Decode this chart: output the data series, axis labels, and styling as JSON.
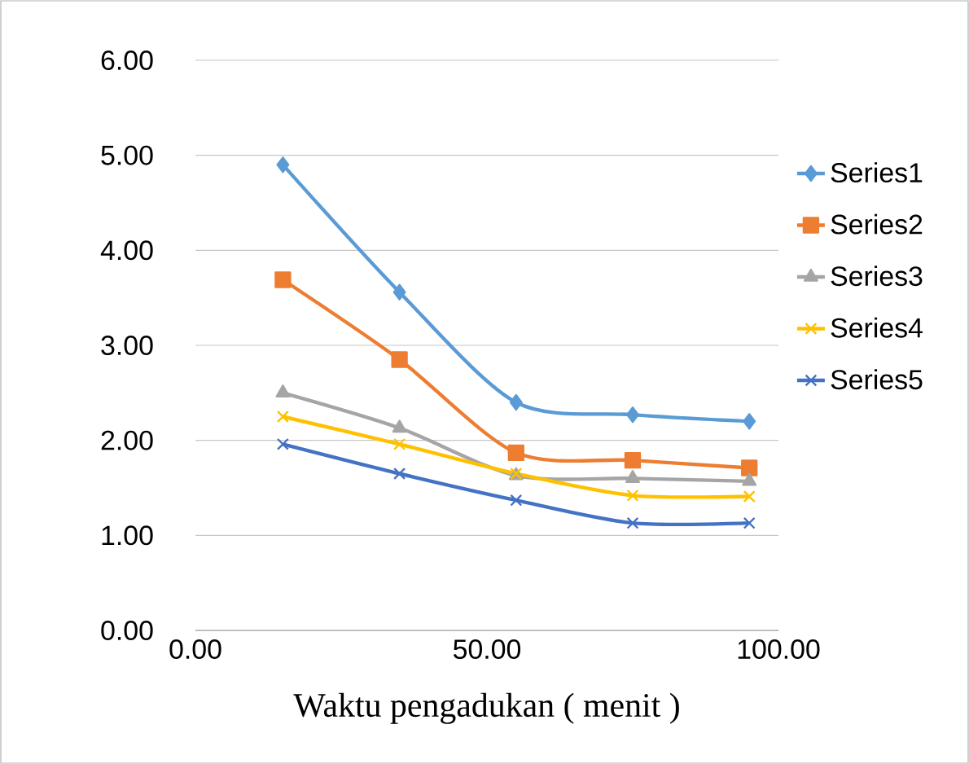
{
  "chart_data": {
    "type": "line",
    "xlabel": "Waktu pengadukan ( menit )",
    "x": [
      15,
      35,
      55,
      75,
      95
    ],
    "series": [
      {
        "name": "Series1",
        "color": "#5b9bd5",
        "marker": "diamond",
        "values": [
          4.9,
          3.56,
          2.4,
          2.27,
          2.2
        ]
      },
      {
        "name": "Series2",
        "color": "#ed7d31",
        "marker": "square",
        "values": [
          3.69,
          2.85,
          1.87,
          1.79,
          1.71
        ]
      },
      {
        "name": "Series3",
        "color": "#a5a5a5",
        "marker": "triangle",
        "values": [
          2.5,
          2.13,
          1.63,
          1.6,
          1.57
        ]
      },
      {
        "name": "Series4",
        "color": "#ffc000",
        "marker": "cross",
        "values": [
          2.25,
          1.96,
          1.65,
          1.42,
          1.41
        ]
      },
      {
        "name": "Series5",
        "color": "#4472c4",
        "marker": "cross",
        "values": [
          1.96,
          1.65,
          1.37,
          1.13,
          1.13
        ]
      }
    ],
    "xlim": [
      0,
      100
    ],
    "ylim": [
      0,
      6
    ],
    "xticks": [
      {
        "value": 0,
        "label": "0.00"
      },
      {
        "value": 50,
        "label": "50.00"
      },
      {
        "value": 100,
        "label": "100.00"
      }
    ],
    "yticks": [
      {
        "value": 0,
        "label": "0.00"
      },
      {
        "value": 1,
        "label": "1.00"
      },
      {
        "value": 2,
        "label": "2.00"
      },
      {
        "value": 3,
        "label": "3.00"
      },
      {
        "value": 4,
        "label": "4.00"
      },
      {
        "value": 5,
        "label": "5.00"
      },
      {
        "value": 6,
        "label": "6.00"
      }
    ],
    "grid": "y",
    "legend": "right"
  }
}
